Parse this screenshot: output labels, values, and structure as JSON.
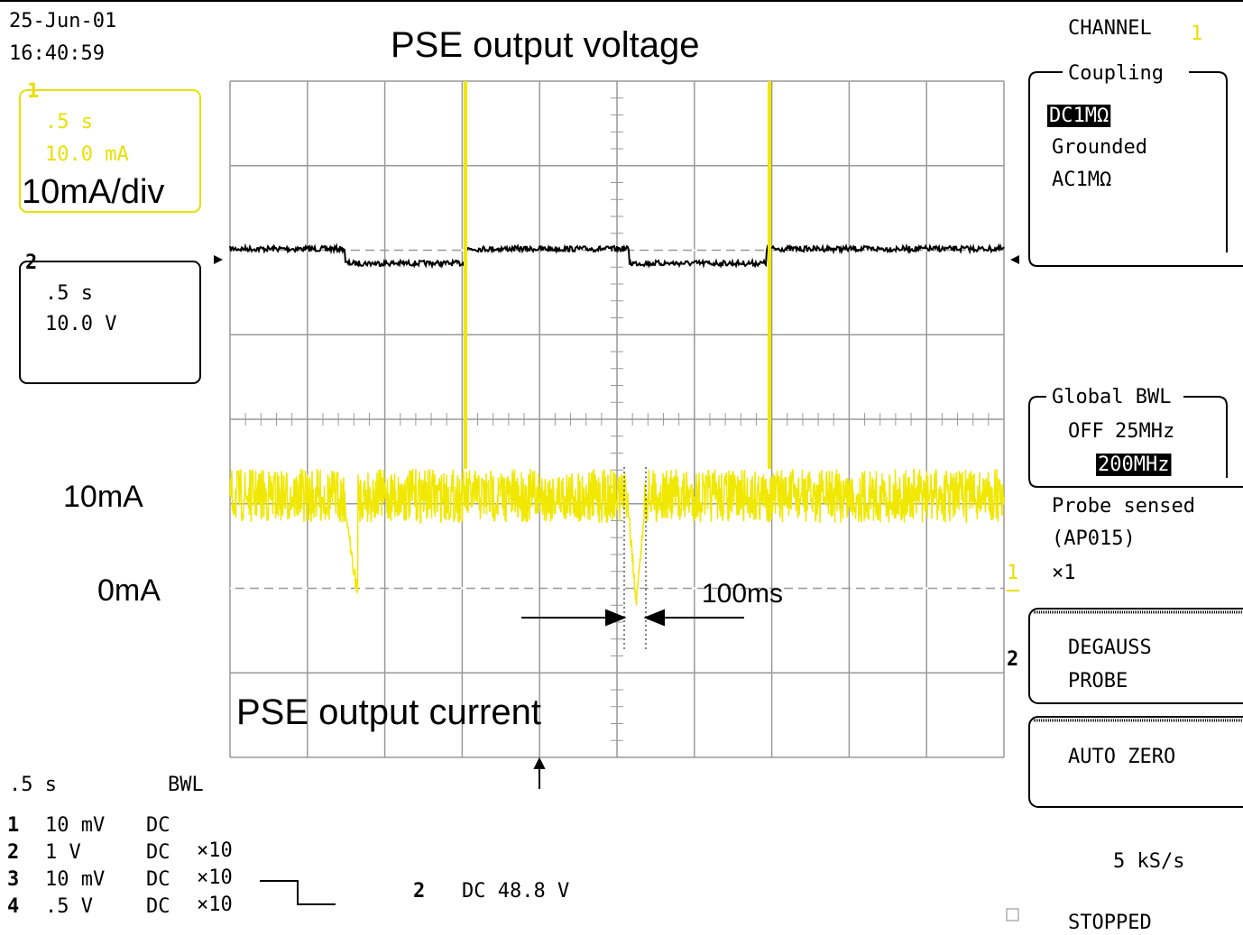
{
  "header": {
    "date": "25-Jun-01",
    "time": "16:40:59"
  },
  "annotations": {
    "title": "PSE output voltage",
    "scale": "10mA/div",
    "level_high": "10mA",
    "level_low": "0mA",
    "pulse_width": "100ms",
    "current_label": "PSE output current"
  },
  "traces": [
    {
      "label": "1",
      "timebase": ".5 s",
      "scale": "10.0 mA"
    },
    {
      "label": "2",
      "timebase": ".5 s",
      "scale": "10.0 V"
    }
  ],
  "menu": {
    "channel_label": "CHANNEL",
    "channel": "1",
    "coupling": {
      "title": "Coupling",
      "options": [
        "DC1MΩ",
        "Grounded",
        "AC1MΩ"
      ]
    },
    "bwl": {
      "title": "Global BWL",
      "options": [
        "OFF",
        "25MHz",
        "200MHz"
      ]
    },
    "probe": [
      "Probe sensed",
      "(AP015)"
    ],
    "gain_channel": "1",
    "gain": "×1",
    "degauss_channel": "2",
    "degauss": [
      "DEGAUSS",
      "PROBE"
    ],
    "auto_zero": "AUTO ZERO"
  },
  "status": {
    "timebase": ".5 s",
    "bwl": "BWL",
    "channels": [
      [
        "1",
        "10 mV",
        "DC"
      ],
      [
        "2",
        "1 V",
        "DC",
        "×10"
      ],
      [
        "3",
        "10 mV",
        "DC",
        "×10"
      ],
      [
        "4",
        ".5 V",
        "DC",
        "×10"
      ]
    ],
    "trigger_channel": "2",
    "trigger": "DC 48.8 V",
    "sample_rate": "5 kS/s",
    "state": "STOPPED"
  }
}
